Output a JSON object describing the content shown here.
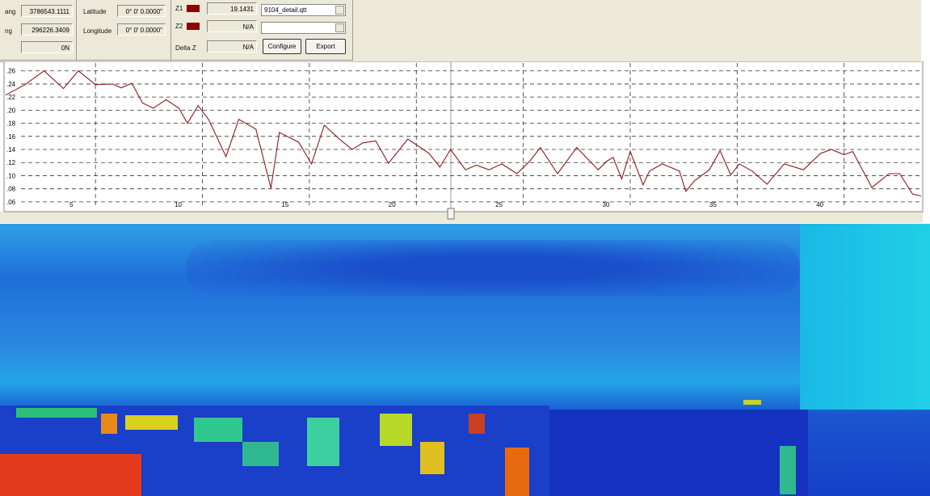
{
  "toolbar": {
    "easting_label": "ang",
    "easting": "3786543.1111",
    "northing_label": "ng",
    "northing": "296226.3409",
    "zone": "0N",
    "latitude_label": "Latitude",
    "latitude": "0° 0' 0.0000\"",
    "longitude_label": "Longitude",
    "longitude": "0° 0' 0.0000\"",
    "z1_label": "Z1",
    "z1": "19.1431",
    "z1_file": "9104_detail.qtt",
    "z2_label": "Z2",
    "z2": "N/A",
    "delta_label": "Delta Z",
    "delta": "N/A",
    "configure": "Configure",
    "export": "Export"
  },
  "chart_data": {
    "type": "line",
    "color": "#8b1a1a",
    "grid": true,
    "x": [
      0.8,
      1.7,
      2.6,
      3.5,
      4.2,
      5.0,
      5.8,
      6.2,
      6.7,
      7.2,
      7.7,
      8.3,
      8.9,
      9.3,
      9.8,
      10.3,
      11.1,
      11.7,
      12.5,
      13.2,
      13.6,
      14.5,
      15.1,
      15.7,
      16.4,
      17.0,
      17.5,
      18.1,
      18.7,
      19.6,
      20.6,
      21.1,
      21.6,
      22.3,
      22.8,
      23.4,
      24.0,
      24.7,
      25.3,
      25.8,
      26.6,
      27.5,
      28.5,
      28.9,
      29.2,
      29.6,
      30.0,
      30.6,
      30.9,
      31.5,
      32.3,
      32.6,
      33.0,
      33.7,
      34.2,
      34.7,
      35.1,
      35.7,
      36.4,
      37.2,
      38.1,
      38.9,
      39.4,
      40.0,
      40.4,
      41.3,
      42.1,
      42.6,
      43.2,
      43.6
    ],
    "values": [
      0.223,
      0.239,
      0.26,
      0.233,
      0.26,
      0.239,
      0.24,
      0.234,
      0.241,
      0.211,
      0.203,
      0.216,
      0.203,
      0.18,
      0.207,
      0.185,
      0.129,
      0.186,
      0.171,
      0.081,
      0.166,
      0.151,
      0.118,
      0.177,
      0.156,
      0.14,
      0.15,
      0.153,
      0.119,
      0.156,
      0.134,
      0.113,
      0.14,
      0.109,
      0.116,
      0.109,
      0.118,
      0.103,
      0.122,
      0.143,
      0.103,
      0.143,
      0.109,
      0.122,
      0.128,
      0.095,
      0.137,
      0.086,
      0.107,
      0.118,
      0.107,
      0.076,
      0.092,
      0.109,
      0.138,
      0.101,
      0.118,
      0.107,
      0.087,
      0.118,
      0.109,
      0.134,
      0.14,
      0.132,
      0.137,
      0.082,
      0.103,
      0.103,
      0.072,
      0.069
    ],
    "xlim": [
      0.8,
      43.6
    ],
    "xticks": [
      5,
      10,
      15,
      20,
      25,
      30,
      35,
      40
    ],
    "ylim": [
      0.05,
      0.272
    ],
    "yticks": [
      {
        "value": 0.06,
        "label": ".06"
      },
      {
        "value": 0.08,
        "label": ".08"
      },
      {
        "value": 0.1,
        "label": ".10"
      },
      {
        "value": 0.12,
        "label": ".12"
      },
      {
        "value": 0.14,
        "label": ".14"
      },
      {
        "value": 0.16,
        "label": ".16"
      },
      {
        "value": 0.18,
        "label": ".18"
      },
      {
        "value": 0.2,
        "label": ".20"
      },
      {
        "value": 0.22,
        "label": ".22"
      },
      {
        "value": 0.24,
        "label": ".24"
      },
      {
        "value": 0.26,
        "label": ".26"
      }
    ]
  }
}
